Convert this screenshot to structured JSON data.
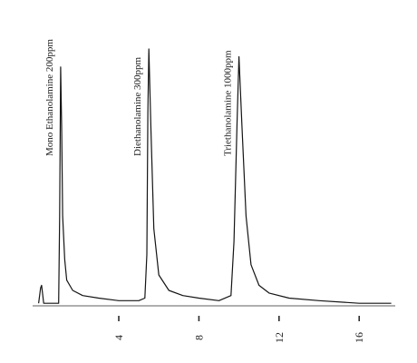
{
  "chart_data": {
    "type": "line",
    "title": "",
    "xlabel": "",
    "ylabel": "",
    "xlim": [
      -0.3,
      17.8
    ],
    "ylim": [
      0,
      1
    ],
    "grid": false,
    "x_ticks": [
      4,
      8,
      12,
      16
    ],
    "x_tick_labels": [
      "4",
      "8",
      "12",
      "16"
    ],
    "series": [
      {
        "x": [
          0,
          0.1,
          0.15,
          0.25,
          1.0,
          1.05,
          1.1,
          1.15,
          1.2,
          1.3,
          1.4,
          1.7,
          2.2,
          3.0,
          4.0,
          5.0,
          5.3,
          5.4,
          5.45,
          5.5,
          5.6,
          5.75,
          6.0,
          6.5,
          7.2,
          8.0,
          9.0,
          9.6,
          9.75,
          9.9,
          10.0,
          10.15,
          10.35,
          10.6,
          11.0,
          11.5,
          12.5,
          14.0,
          16.0,
          17.6
        ],
        "values": [
          0.01,
          0.07,
          0.08,
          0.01,
          0.01,
          0.35,
          0.93,
          0.7,
          0.35,
          0.18,
          0.1,
          0.06,
          0.04,
          0.03,
          0.02,
          0.02,
          0.03,
          0.2,
          0.75,
          1.0,
          0.7,
          0.3,
          0.12,
          0.06,
          0.04,
          0.03,
          0.02,
          0.04,
          0.25,
          0.7,
          0.97,
          0.7,
          0.35,
          0.16,
          0.08,
          0.05,
          0.03,
          0.02,
          0.01,
          0.01
        ]
      }
    ],
    "annotations": [
      {
        "text": "Mono Ethanolamine  200ppm",
        "x": 1.1
      },
      {
        "text": "Diethanolamine   300ppm",
        "x": 5.5
      },
      {
        "text": "Triethanolamine   1000ppm",
        "x": 10.0
      }
    ]
  }
}
